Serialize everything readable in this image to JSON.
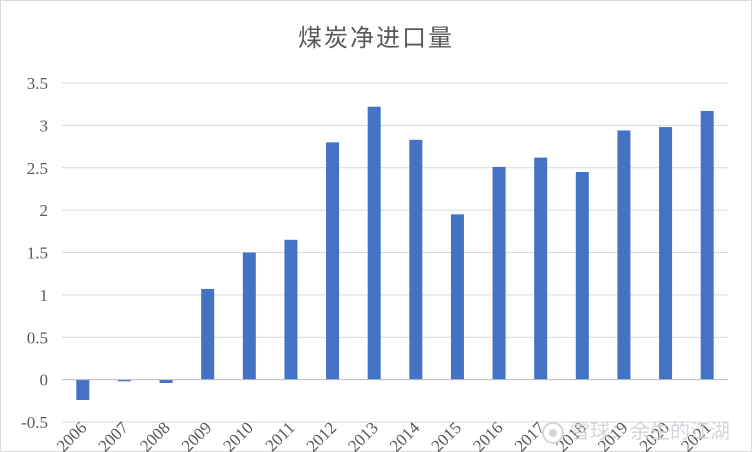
{
  "chart_data": {
    "type": "bar",
    "title": "煤炭净进口量",
    "categories": [
      "2006",
      "2007",
      "2008",
      "2009",
      "2010",
      "2011",
      "2012",
      "2013",
      "2014",
      "2015",
      "2016",
      "2017",
      "2018",
      "2019",
      "2020",
      "2021"
    ],
    "values": [
      -0.24,
      -0.02,
      -0.04,
      1.07,
      1.5,
      1.65,
      2.8,
      3.22,
      2.83,
      1.95,
      2.51,
      2.62,
      2.45,
      2.94,
      2.98,
      3.17
    ],
    "ylim": [
      -0.5,
      3.5
    ],
    "yticks": [
      -0.5,
      0,
      0.5,
      1,
      1.5,
      2,
      2.5,
      3,
      3.5
    ],
    "ytick_labels": [
      "-0.5",
      "0",
      "0.5",
      "1",
      "1.5",
      "2",
      "2.5",
      "3",
      "3.5"
    ],
    "xlabel": "",
    "ylabel": "",
    "grid": true,
    "legend": "none",
    "bar_color": "#4472c4"
  },
  "watermark": {
    "text": "雪球：余生的江湖",
    "logo_icon": "snowball-logo-icon"
  }
}
